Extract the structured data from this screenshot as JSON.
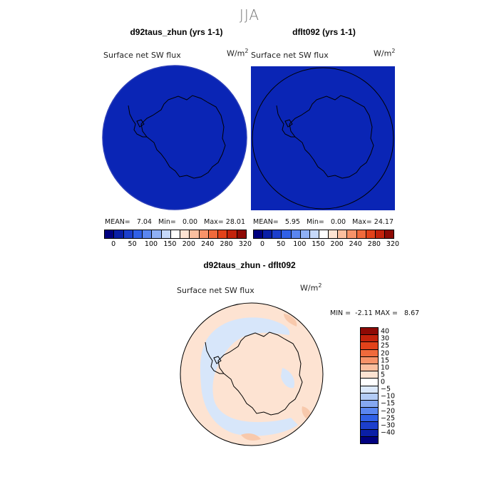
{
  "season_title": "JJA",
  "panels": [
    {
      "title": "d92taus_zhun (yrs 1-1)",
      "variable": "Surface net SW flux",
      "units_base": "W/m",
      "units_exp": "2",
      "mean_label": "MEAN=",
      "mean": "7.04",
      "min_label": "Min=",
      "min": "0.00",
      "max_label": "Max=",
      "max": "28.01"
    },
    {
      "title": "dflt092 (yrs 1-1)",
      "variable": "Surface net SW flux",
      "units_base": "W/m",
      "units_exp": "2",
      "mean_label": "MEAN=",
      "mean": "5.95",
      "min_label": "Min=",
      "min": "0.00",
      "max_label": "Max=",
      "max": "24.17"
    }
  ],
  "top_colorbar": {
    "tick_labels": [
      "0",
      "50",
      "100",
      "150",
      "200",
      "240",
      "280",
      "320"
    ],
    "colors": [
      "#00007f",
      "#0a1fa6",
      "#1c3fcc",
      "#3060e6",
      "#5a86f0",
      "#8fb0f5",
      "#c6d9fa",
      "#ffffff",
      "#fde3d2",
      "#fbbf9f",
      "#f79369",
      "#f06a3c",
      "#e2421a",
      "#c3230c",
      "#8e0a05"
    ]
  },
  "diff_panel": {
    "title": "d92taus_zhun - dflt092",
    "variable": "Surface net SW flux",
    "units_base": "W/m",
    "units_exp": "2",
    "min_label": "MIN =",
    "min": "-2.11",
    "max_label": "MAX =",
    "max": "8.67"
  },
  "diff_colorbar": {
    "tick_labels": [
      "40",
      "30",
      "25",
      "20",
      "15",
      "10",
      "5",
      "0",
      "−5",
      "−10",
      "−15",
      "−20",
      "−25",
      "−30",
      "−40"
    ],
    "colors": [
      "#8e0a05",
      "#c3230c",
      "#e2421a",
      "#f06a3c",
      "#f79369",
      "#fbbf9f",
      "#fde3d2",
      "#ffffff",
      "#dbe8fb",
      "#b3ccf6",
      "#86a8f0",
      "#5a86f0",
      "#3060e6",
      "#1c3fcc",
      "#0a1fa6",
      "#00007f"
    ]
  },
  "colors": {
    "field_blue": "#0a25b5",
    "diff_peach": "#fde3d2",
    "diff_lightblue": "#d7e6fa",
    "diff_salmon": "#f8c9ac"
  }
}
